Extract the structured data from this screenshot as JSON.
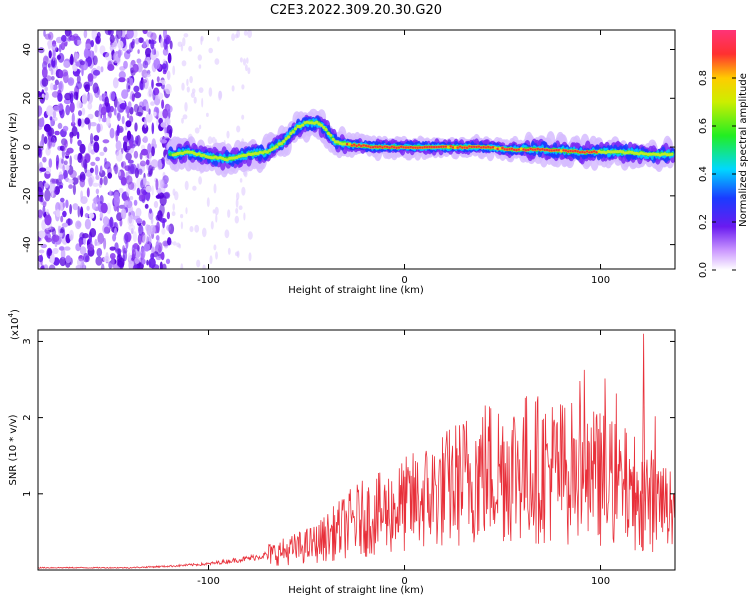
{
  "chart_data": [
    {
      "type": "heatmap",
      "title": "C2E3.2022.309.20.30.G20",
      "xlabel": "Height of straight line (km)",
      "ylabel": "Frequency (Hz)",
      "xlim": [
        -187,
        138
      ],
      "ylim": [
        -50,
        48
      ],
      "x_ticks": [
        -100,
        0,
        100
      ],
      "y_ticks": [
        -40,
        -20,
        0,
        20,
        40
      ],
      "colorbar": {
        "label": "Normalized spectral amplitude",
        "range": [
          0,
          1
        ],
        "ticks": [
          "0.0",
          "0.2",
          "0.4",
          "0.6",
          "0.8"
        ]
      },
      "colors": {
        "high": "#e8303a",
        "mid": "#33dd33",
        "low": "#2a2aee",
        "noise": "#8a3cf0"
      },
      "ridge_trace": [
        {
          "x": -118,
          "y": -3
        },
        {
          "x": -110,
          "y": -2
        },
        {
          "x": -100,
          "y": -4
        },
        {
          "x": -90,
          "y": -5
        },
        {
          "x": -80,
          "y": -3
        },
        {
          "x": -70,
          "y": -2
        },
        {
          "x": -62,
          "y": 2
        },
        {
          "x": -55,
          "y": 8
        },
        {
          "x": -50,
          "y": 10
        },
        {
          "x": -44,
          "y": 10
        },
        {
          "x": -40,
          "y": 7
        },
        {
          "x": -35,
          "y": 2
        },
        {
          "x": -28,
          "y": 1
        },
        {
          "x": -15,
          "y": 0
        },
        {
          "x": 0,
          "y": 0
        },
        {
          "x": 20,
          "y": 0
        },
        {
          "x": 40,
          "y": 0
        },
        {
          "x": 55,
          "y": -1
        },
        {
          "x": 70,
          "y": -1
        },
        {
          "x": 90,
          "y": -2
        },
        {
          "x": 110,
          "y": -2
        },
        {
          "x": 125,
          "y": -3
        },
        {
          "x": 135,
          "y": -3
        }
      ]
    },
    {
      "type": "line",
      "xlabel": "Height of straight line (km)",
      "ylabel": "SNR (10 * v/v)",
      "y_multiplier": "(x10",
      "y_multiplier_exp": "4",
      "xlim": [
        -187,
        138
      ],
      "ylim": [
        0,
        3.15
      ],
      "x_ticks": [
        -100,
        0,
        100
      ],
      "y_ticks": [
        1,
        2,
        3
      ],
      "color": "#e8303a",
      "envelope": [
        {
          "x": -187,
          "y": 0.03
        },
        {
          "x": -140,
          "y": 0.03
        },
        {
          "x": -120,
          "y": 0.05
        },
        {
          "x": -100,
          "y": 0.08
        },
        {
          "x": -80,
          "y": 0.15
        },
        {
          "x": -60,
          "y": 0.25
        },
        {
          "x": -45,
          "y": 0.35
        },
        {
          "x": -35,
          "y": 0.5
        },
        {
          "x": -25,
          "y": 0.65
        },
        {
          "x": -10,
          "y": 0.75
        },
        {
          "x": 0,
          "y": 0.85
        },
        {
          "x": 20,
          "y": 1.05
        },
        {
          "x": 40,
          "y": 1.3
        },
        {
          "x": 60,
          "y": 1.35
        },
        {
          "x": 80,
          "y": 1.3
        },
        {
          "x": 100,
          "y": 1.2
        },
        {
          "x": 120,
          "y": 1.0
        },
        {
          "x": 135,
          "y": 0.8
        }
      ],
      "peak": {
        "x": 122,
        "y": 3.1
      }
    }
  ]
}
